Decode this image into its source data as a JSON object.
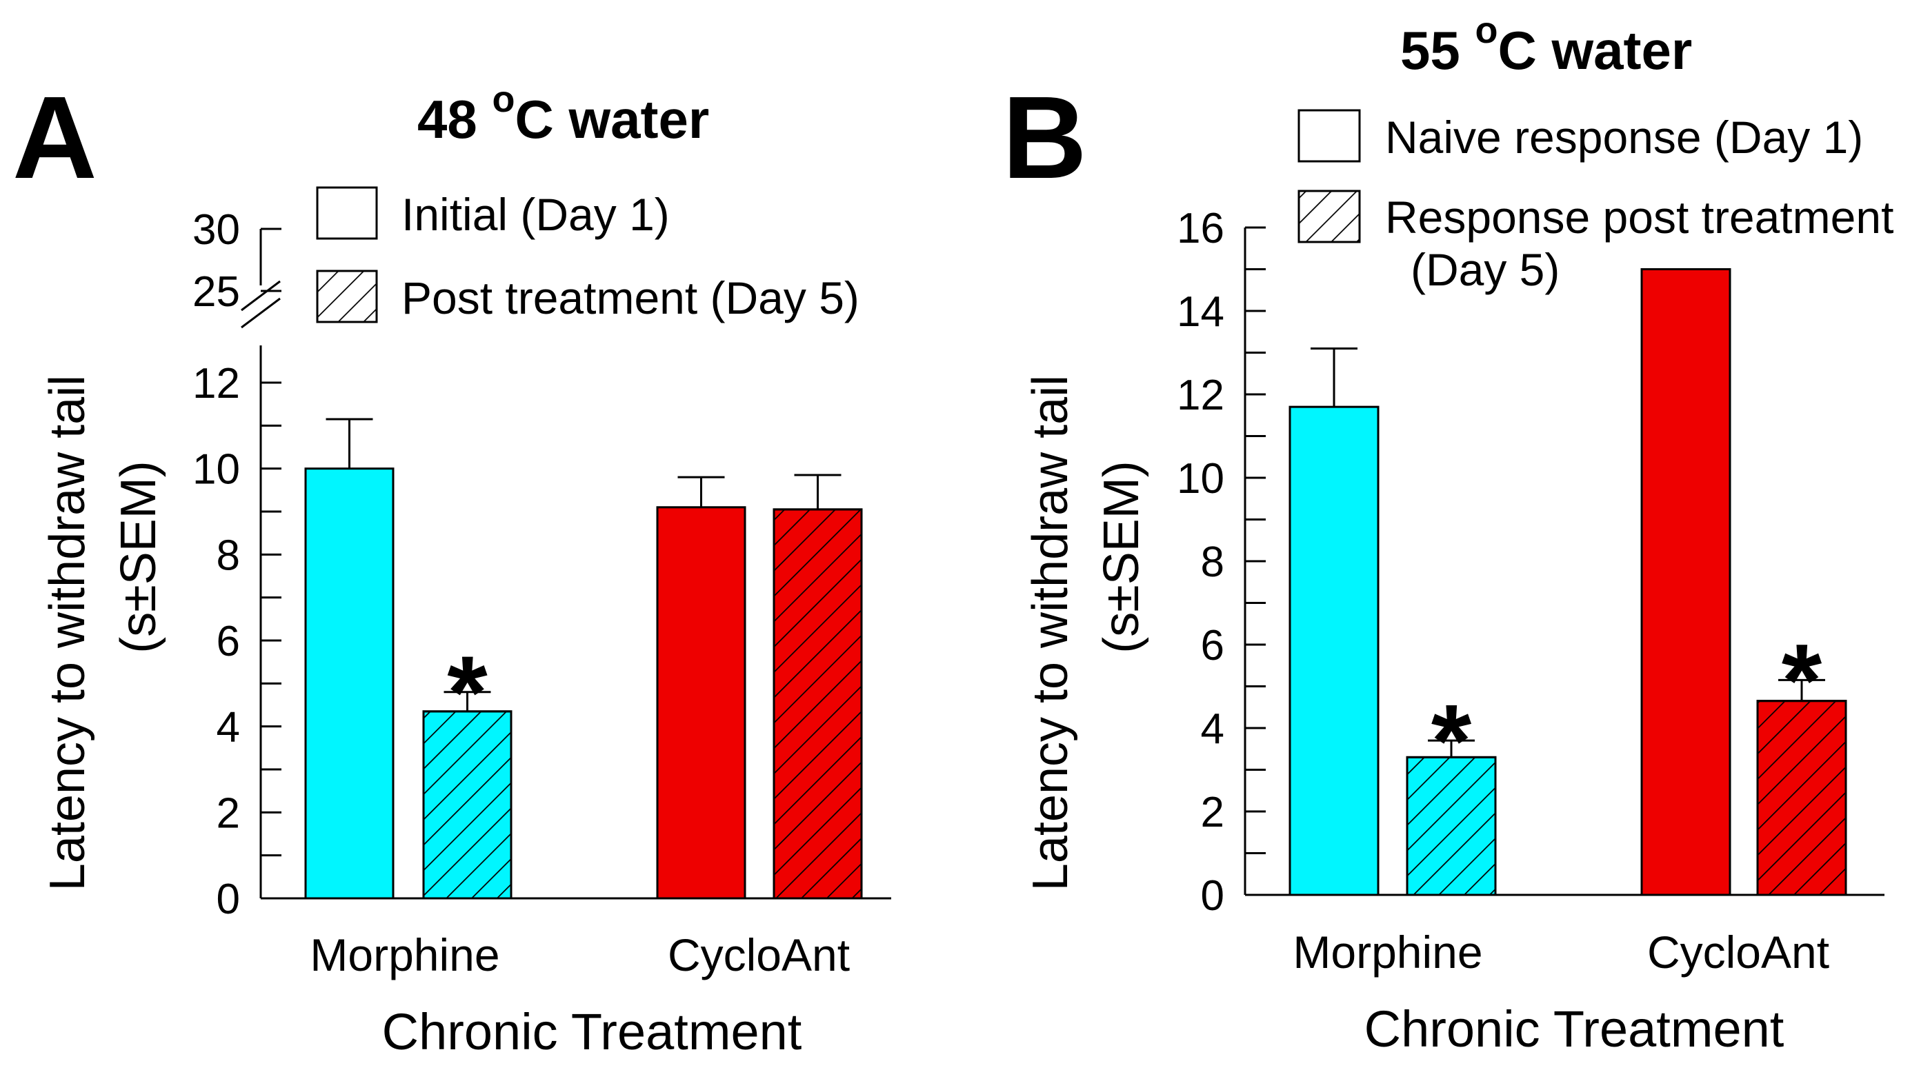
{
  "colors": {
    "morphine": "#00f6ff",
    "cycloant": "#ee0000",
    "axis": "#000000",
    "background": "#ffffff"
  },
  "chart_data": [
    {
      "panel": "A",
      "type": "bar",
      "title": "48 °C water",
      "title_parts": {
        "prefix": "48 ",
        "superscript": "o",
        "suffix": "C water"
      },
      "xlabel": "Chronic Treatment",
      "ylabel": "Latency to withdraw tail",
      "ylabel_line2": "(s±SEM)",
      "categories": [
        "Morphine",
        "CycloAnt"
      ],
      "series": [
        {
          "name": "Initial (Day 1)",
          "pattern": "solid",
          "values": [
            10.0,
            9.1
          ],
          "errors": [
            1.15,
            0.7
          ]
        },
        {
          "name": "Post treatment (Day 5)",
          "pattern": "hatched",
          "values": [
            4.35,
            9.05
          ],
          "errors": [
            0.45,
            0.8
          ]
        }
      ],
      "significance": [
        "",
        "*",
        "",
        ""
      ],
      "star_symbol": "*",
      "ylim": [
        0,
        12
      ],
      "yticks": [
        "0",
        "2",
        "4",
        "6",
        "8",
        "10",
        "12"
      ],
      "ybreak_ticks": [
        "25",
        "30"
      ],
      "axis_break": true,
      "legend": {
        "placement": "top"
      },
      "grid": false
    },
    {
      "panel": "B",
      "type": "bar",
      "title": "55 °C water",
      "title_parts": {
        "prefix": "55 ",
        "superscript": "o",
        "suffix": "C water"
      },
      "xlabel": "Chronic Treatment",
      "ylabel": "Latency to withdraw tail",
      "ylabel_line2": "(s±SEM)",
      "categories": [
        "Morphine",
        "CycloAnt"
      ],
      "series": [
        {
          "name": "Naive response (Day 1)",
          "pattern": "solid",
          "values": [
            11.7,
            15.0
          ],
          "errors": [
            1.4,
            0
          ]
        },
        {
          "name": "Response post treatment",
          "name_line2": "(Day 5)",
          "pattern": "hatched",
          "values": [
            3.3,
            4.65
          ],
          "errors": [
            0.4,
            0.5
          ]
        }
      ],
      "significance": [
        "",
        "*",
        "",
        "*"
      ],
      "star_symbol": "*",
      "ylim": [
        0,
        16
      ],
      "yticks": [
        "0",
        "2",
        "4",
        "6",
        "8",
        "10",
        "12",
        "14",
        "16"
      ],
      "axis_break": false,
      "legend": {
        "placement": "top-right"
      },
      "grid": false
    }
  ]
}
